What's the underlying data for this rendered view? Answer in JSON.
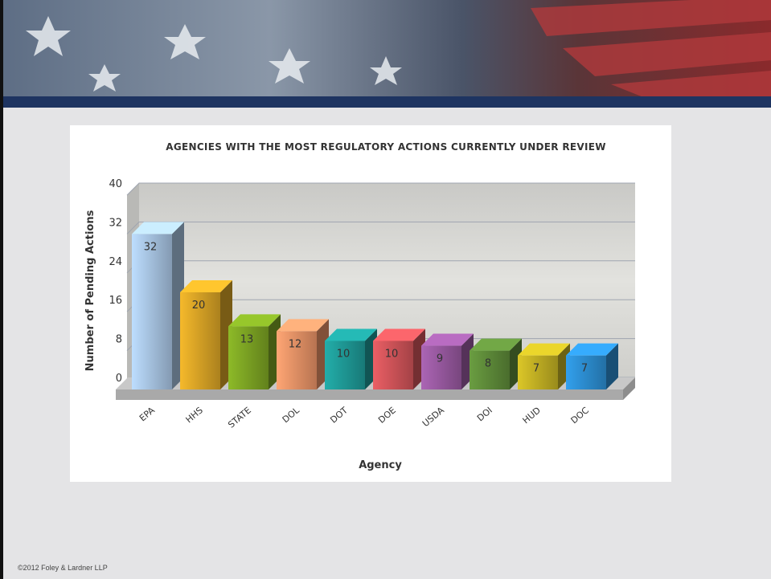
{
  "chart_data": {
    "type": "bar",
    "title": "AGENCIES WITH THE MOST REGULATORY ACTIONS CURRENTLY UNDER REVIEW",
    "x_label": "Agency",
    "y_label": "Number of Pending Actions",
    "categories": [
      "EPA",
      "HHS",
      "STATE",
      "DOL",
      "DOT",
      "DOE",
      "USDA",
      "DOI",
      "HUD",
      "DOC"
    ],
    "values": [
      32,
      20,
      13,
      12,
      10,
      10,
      9,
      8,
      7,
      7
    ],
    "colors": [
      "#a9c6e4",
      "#dba526",
      "#7ea624",
      "#eb9468",
      "#1f9b98",
      "#d2555a",
      "#9a5aa2",
      "#5f8c3a",
      "#c4b224",
      "#2d8fd4"
    ],
    "ylim": [
      0,
      40
    ],
    "yticks": [
      0,
      8,
      16,
      24,
      32,
      40
    ],
    "grid": true
  },
  "footer": "©2012 Foley & Lardner LLP"
}
